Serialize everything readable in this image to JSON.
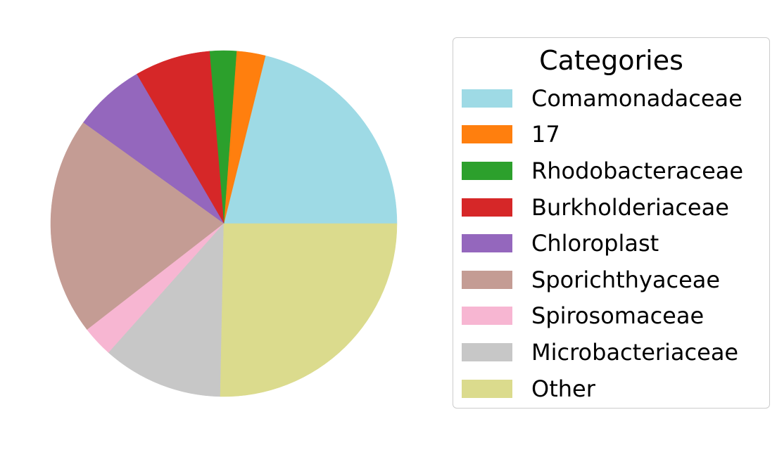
{
  "chart_data": {
    "type": "pie",
    "title": "",
    "categories": [
      "Comamonadaceae",
      "17",
      "Rhodobacteraceae",
      "Burkholderiaceae",
      "Chloroplast",
      "Sporichthyaceae",
      "Spirosomaceae",
      "Microbacteriaceae",
      "Other"
    ],
    "values": [
      21.2,
      2.7,
      2.5,
      7.1,
      6.7,
      20.5,
      2.9,
      11.3,
      25.4
    ],
    "colors": [
      "#9edae5",
      "#ff7f0e",
      "#2ca02c",
      "#d62728",
      "#9467bd",
      "#c49c94",
      "#f7b6d2",
      "#c7c7c7",
      "#dbdb8d"
    ],
    "start_angle_deg": 0,
    "direction": "counterclockwise",
    "legend": {
      "title": "Categories",
      "placement": "right"
    }
  }
}
